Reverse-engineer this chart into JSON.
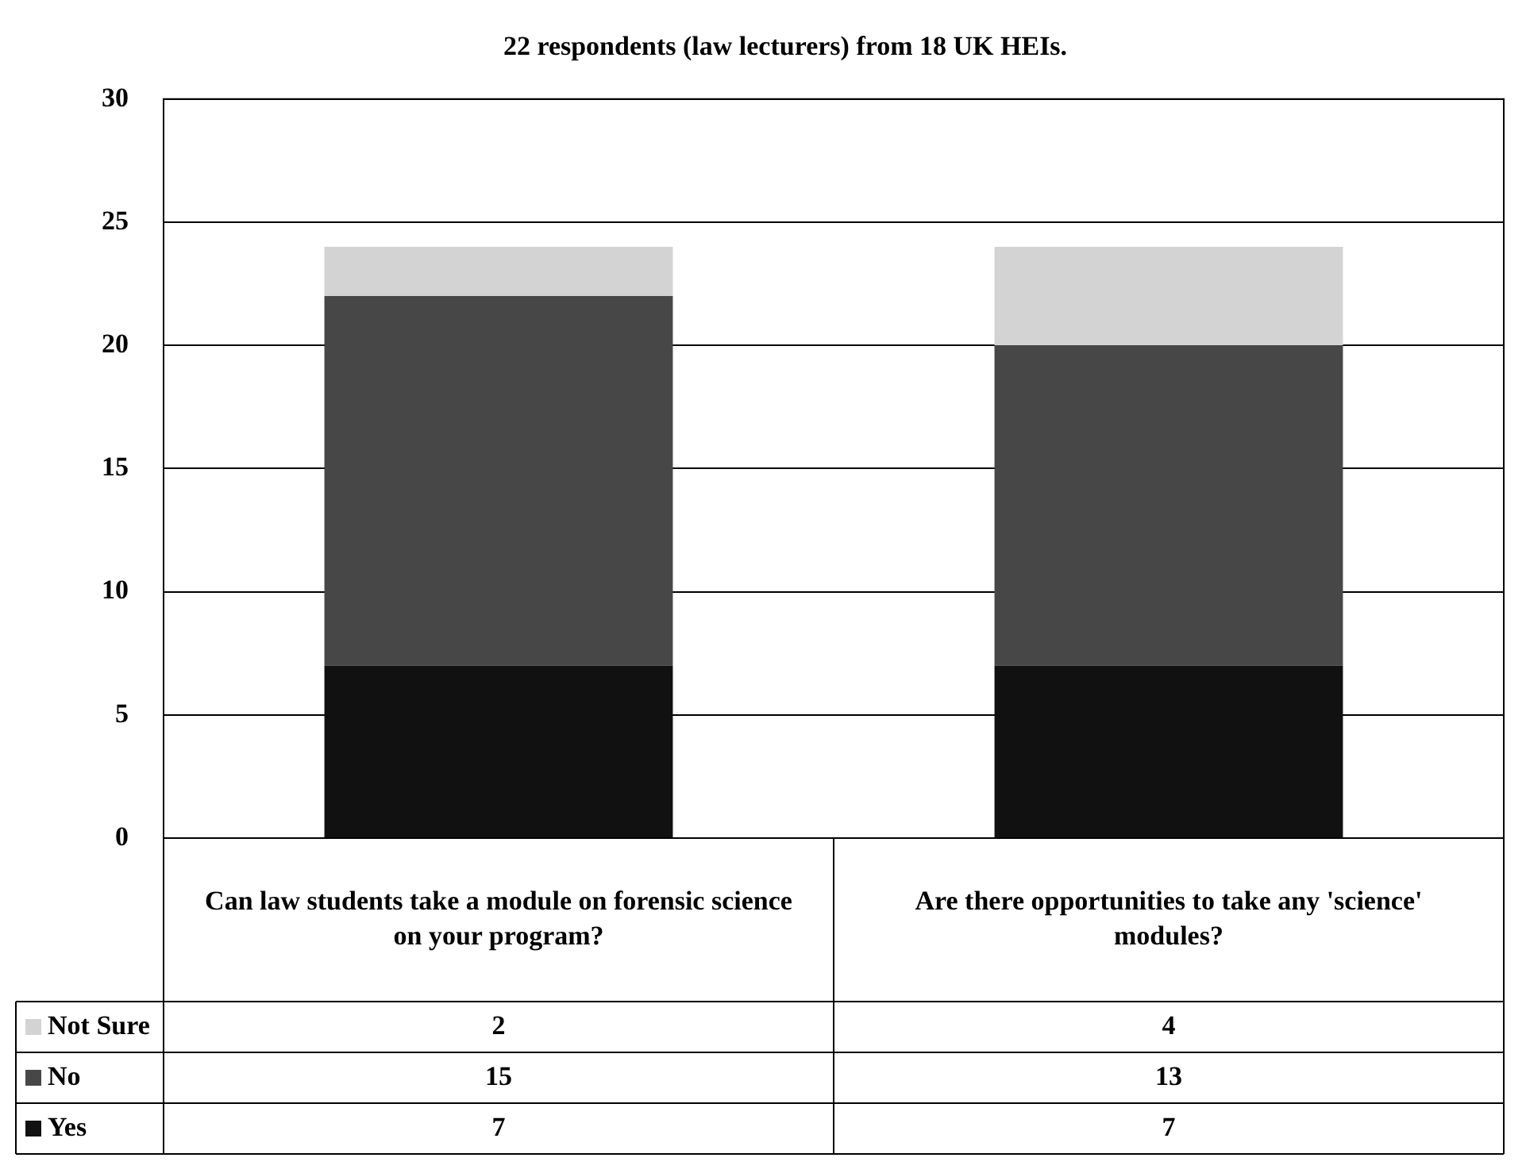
{
  "chart_data": {
    "type": "bar",
    "title": "22 respondents (law lecturers) from 18 UK HEIs.",
    "categories": [
      "Can law students take a module on forensic science on your program?",
      "Are there opportunities to take any 'science' modules?"
    ],
    "stacked": true,
    "series": [
      {
        "name": "Yes",
        "color": "#111111",
        "values": [
          7,
          7
        ]
      },
      {
        "name": "No",
        "color": "#474747",
        "values": [
          15,
          13
        ]
      },
      {
        "name": "Not Sure",
        "color": "#d3d3d3",
        "values": [
          2,
          4
        ]
      }
    ],
    "ylim": [
      0,
      30
    ],
    "yticks": [
      0,
      5,
      10,
      15,
      20,
      25,
      30
    ],
    "grid": "y",
    "legend": "bottom",
    "data_labels": true
  }
}
